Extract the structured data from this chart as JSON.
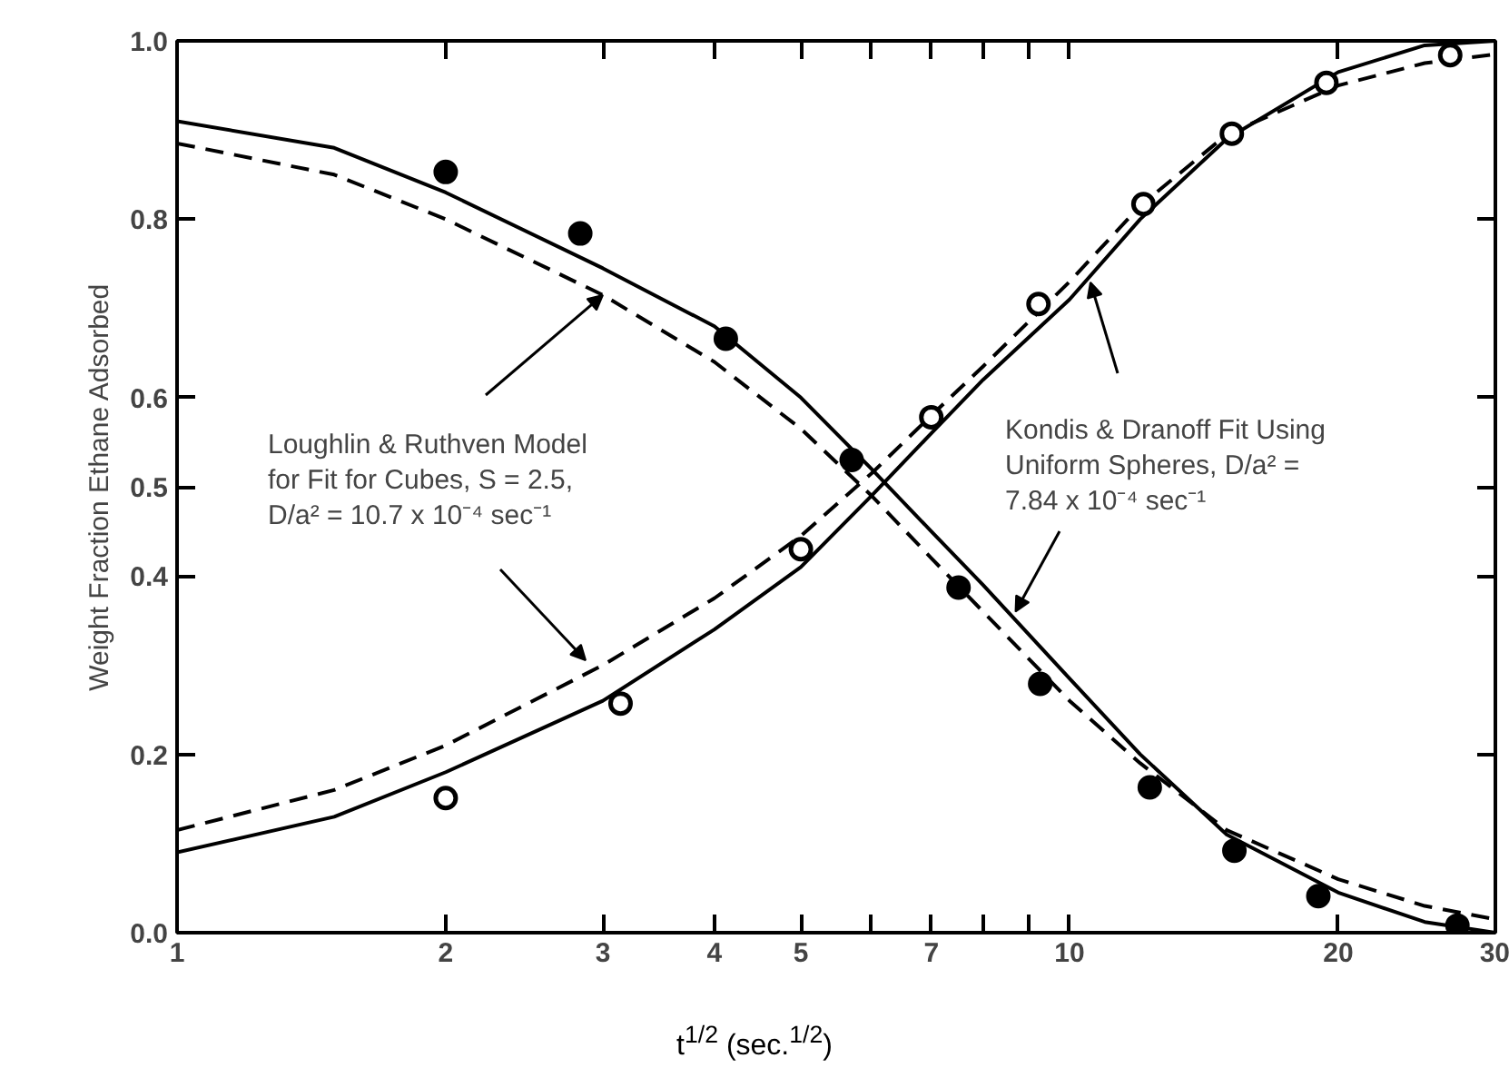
{
  "chart_data": {
    "type": "line",
    "xlabel": "t$^{1/2}$ (sec.$^{1/2}$)",
    "ylabel": "Weight Fraction Ethane Adsorbed",
    "log": "x",
    "grid": false,
    "xlim": [
      1,
      30
    ],
    "ylim": [
      0,
      1.0
    ],
    "xticks": [
      1,
      2,
      3,
      4,
      5,
      {
        "value": 6,
        "label": null
      },
      7,
      {
        "value": 8,
        "label": null
      },
      {
        "value": 9,
        "label": null
      },
      10,
      20,
      30
    ],
    "yticks": [
      {
        "value": 0,
        "label": "0.0"
      },
      0.2,
      0.4,
      0.5,
      0.6,
      0.8,
      {
        "value": 1,
        "label": "1.0"
      }
    ],
    "series": [
      {
        "color": "#000000",
        "line_style": "solid",
        "x": [
          1,
          1.5,
          2,
          3,
          4,
          5,
          6,
          7,
          8,
          10,
          12,
          15,
          20,
          25,
          30
        ],
        "values": [
          0.91,
          0.88,
          0.83,
          0.745,
          0.68,
          0.6,
          0.52,
          0.45,
          0.39,
          0.285,
          0.2,
          0.11,
          0.045,
          0.012,
          0.0
        ]
      },
      {
        "color": "#000000",
        "line_style": "dashed",
        "x": [
          1,
          1.5,
          2,
          3,
          4,
          5,
          6,
          7,
          8,
          10,
          12,
          15,
          20,
          25,
          30
        ],
        "values": [
          0.885,
          0.85,
          0.8,
          0.715,
          0.64,
          0.565,
          0.49,
          0.42,
          0.36,
          0.26,
          0.19,
          0.115,
          0.06,
          0.03,
          0.015
        ]
      },
      {
        "color": "#000000",
        "line_style": "solid",
        "x": [
          1,
          1.5,
          2,
          3,
          4,
          5,
          6,
          7,
          8,
          10,
          12,
          15,
          20,
          25,
          30
        ],
        "values": [
          0.09,
          0.13,
          0.18,
          0.26,
          0.34,
          0.41,
          0.49,
          0.56,
          0.62,
          0.71,
          0.8,
          0.89,
          0.965,
          0.995,
          1.0
        ]
      },
      {
        "color": "#000000",
        "line_style": "dashed",
        "x": [
          1,
          1.5,
          2,
          3,
          4,
          5,
          6,
          7,
          8,
          10,
          12,
          15,
          20,
          25,
          30
        ],
        "values": [
          0.115,
          0.16,
          0.21,
          0.3,
          0.375,
          0.445,
          0.515,
          0.58,
          0.635,
          0.73,
          0.815,
          0.895,
          0.95,
          0.975,
          0.985
        ]
      },
      {
        "type": "scatter",
        "marker": "circle",
        "color": "#000000",
        "x": [
          2,
          2.83,
          4.12,
          5.7,
          7.51,
          9.27,
          12.3,
          15.3,
          19.0,
          27.2
        ],
        "values": [
          0.853,
          0.784,
          0.666,
          0.53,
          0.387,
          0.279,
          0.163,
          0.092,
          0.041,
          0.008
        ]
      },
      {
        "type": "scatter",
        "marker": "circle",
        "color": "#ffffff",
        "x": [
          2,
          3.14,
          5.0,
          7.0,
          9.23,
          12.1,
          15.2,
          19.4,
          26.7
        ],
        "values": [
          0.151,
          0.257,
          0.43,
          0.578,
          0.705,
          0.817,
          0.896,
          0.953,
          0.984
        ]
      }
    ],
    "annotations": [
      {
        "text": "Loughlin & Ruthven Model\nfor Fit for Cubes, S = 2.5,\nD/a² = 10.7 x 10⁻⁴ sec⁻¹",
        "x": 3,
        "y": 0.715
      },
      {
        "text": "Kondis & Dranoff Fit Using\nUniform Spheres, D/a² =\n7.84 x 10⁻⁴ sec⁻¹",
        "x": 8.7,
        "y": 0.36
      }
    ]
  }
}
